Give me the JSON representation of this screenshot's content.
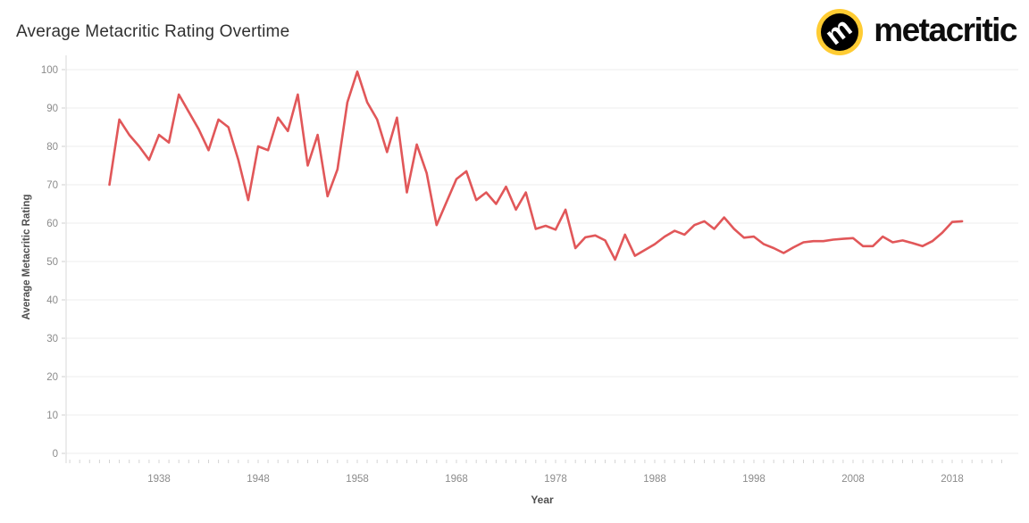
{
  "header": {
    "title": "Average Metacritic Rating Overtime",
    "logo": {
      "brand_text": "metacritic",
      "letter": "m",
      "circle_color": "#ffcc33",
      "inner_color": "#000000",
      "letter_color": "#ffffff"
    }
  },
  "chart_data": {
    "type": "line",
    "title": "Average Metacritic Rating Overtime",
    "xlabel": "Year",
    "ylabel": "Average Metacritic Rating",
    "legend": "none",
    "grid": "horizontal",
    "line_color": "#e15759",
    "grid_color": "#ececec",
    "axis_color": "#d9d9d9",
    "tick_label_color": "#8b8b8b",
    "ylim": [
      0,
      100
    ],
    "xlim": [
      1928.5,
      2024.5
    ],
    "y_ticks": [
      0,
      10,
      20,
      30,
      40,
      50,
      60,
      70,
      80,
      90,
      100
    ],
    "x_ticks": [
      1938,
      1948,
      1958,
      1968,
      1978,
      1988,
      1998,
      2008,
      2018
    ],
    "x": [
      1933,
      1934,
      1935,
      1936,
      1937,
      1938,
      1939,
      1940,
      1941,
      1942,
      1943,
      1944,
      1945,
      1946,
      1947,
      1948,
      1949,
      1950,
      1951,
      1952,
      1953,
      1954,
      1955,
      1956,
      1957,
      1958,
      1959,
      1960,
      1961,
      1962,
      1963,
      1964,
      1965,
      1966,
      1967,
      1968,
      1969,
      1970,
      1971,
      1972,
      1973,
      1974,
      1975,
      1976,
      1977,
      1978,
      1979,
      1980,
      1981,
      1982,
      1983,
      1984,
      1985,
      1986,
      1987,
      1988,
      1989,
      1990,
      1991,
      1992,
      1993,
      1994,
      1995,
      1996,
      1997,
      1998,
      1999,
      2000,
      2001,
      2002,
      2003,
      2004,
      2005,
      2006,
      2007,
      2008,
      2009,
      2010,
      2011,
      2012,
      2013,
      2014,
      2015,
      2016,
      2017,
      2018,
      2019
    ],
    "y": [
      70,
      87,
      83,
      80,
      76.5,
      83,
      81,
      93.5,
      89,
      84.5,
      79,
      87,
      85,
      76.5,
      66,
      80,
      79,
      87.5,
      84,
      93.5,
      75,
      83,
      67,
      74,
      91.5,
      99.5,
      91.5,
      87,
      78.5,
      87.5,
      68,
      80.5,
      73,
      59.5,
      65.5,
      71.5,
      73.5,
      66,
      68,
      65,
      69.5,
      63.5,
      68,
      58.5,
      59.3,
      58.3,
      63.5,
      53.5,
      56.3,
      56.8,
      55.5,
      50.5,
      57,
      51.5,
      53,
      54.5,
      56.5,
      58,
      57,
      59.5,
      60.5,
      58.5,
      61.5,
      58.5,
      56.2,
      56.5,
      54.5,
      53.5,
      52.2,
      53.7,
      55,
      55.3,
      55.3,
      55.7,
      55.9,
      56.1,
      54,
      54,
      56.5,
      55,
      55.5,
      54.8,
      54,
      55.3,
      57.5,
      60.3,
      60.5
    ]
  }
}
